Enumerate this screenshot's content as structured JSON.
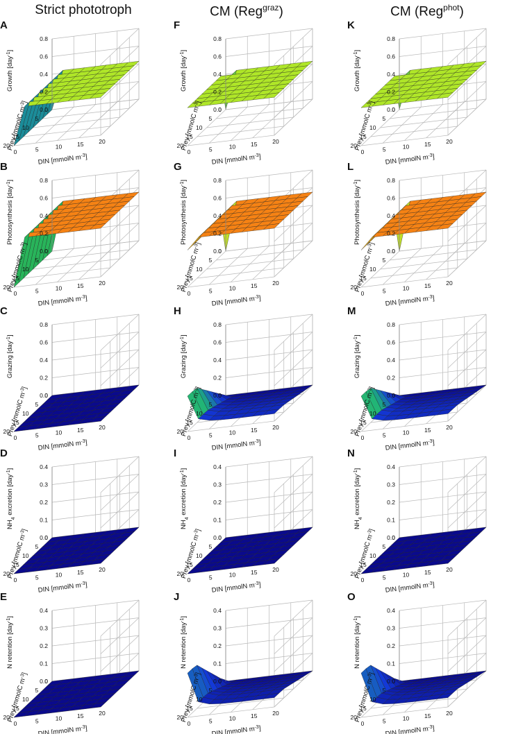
{
  "columns": [
    {
      "title": "Strict phototroph",
      "title_sup": ""
    },
    {
      "title": "CM (Reg",
      "title_sup": "graz",
      "title_end": ")"
    },
    {
      "title": "CM (Reg",
      "title_sup": "phot",
      "title_end": ")"
    }
  ],
  "axes": {
    "x_label": "DIN [mmolN m",
    "x_label_sup": "-3",
    "x_label_end": "]",
    "y_label": "Prey [mmolC m",
    "y_label_sup": "-3",
    "y_label_end": "]",
    "x_ticks": [
      "0",
      "5",
      "10",
      "15",
      "20"
    ],
    "y_ticks": [
      "20",
      "15",
      "10",
      "5",
      "0"
    ],
    "x_range": [
      0,
      20
    ],
    "y_range": [
      0,
      20
    ]
  },
  "rows": [
    {
      "z_label": "Growth [day",
      "z_sup": "-1",
      "z_end": "]",
      "z_ticks": [
        "0.0",
        "0.2",
        "0.4",
        "0.6",
        "0.8"
      ],
      "zlim": [
        0,
        0.8
      ]
    },
    {
      "z_label": "Photosynthesis [day",
      "z_sup": "-1",
      "z_end": "]",
      "z_ticks": [
        "0.0",
        "0.2",
        "0.4",
        "0.6",
        "0.8"
      ],
      "zlim": [
        0,
        0.8
      ]
    },
    {
      "z_label": "Grazing [day",
      "z_sup": "-1",
      "z_end": "]",
      "z_ticks": [
        "0.0",
        "0.2",
        "0.4",
        "0.6",
        "0.8"
      ],
      "zlim": [
        0,
        0.8
      ]
    },
    {
      "z_label": "NH",
      "z_sub": "4",
      "z_label2": " excretion [day",
      "z_sup": "-1",
      "z_end": "]",
      "z_ticks": [
        "0.0",
        "0.1",
        "0.2",
        "0.3",
        "0.4"
      ],
      "zlim": [
        0,
        0.4
      ]
    },
    {
      "z_label": "N retention [day",
      "z_sup": "-1",
      "z_end": "]",
      "z_ticks": [
        "0.0",
        "0.1",
        "0.2",
        "0.3",
        "0.4"
      ],
      "zlim": [
        0,
        0.4
      ]
    }
  ],
  "panel_letters": [
    [
      "A",
      "F",
      "K"
    ],
    [
      "B",
      "G",
      "L"
    ],
    [
      "C",
      "H",
      "M"
    ],
    [
      "D",
      "I",
      "N"
    ],
    [
      "E",
      "J",
      "O"
    ]
  ],
  "chart_data": {
    "type": "surface",
    "x_label": "DIN [mmolN m-3]",
    "y_label": "Prey [mmolC m-3]",
    "x": [
      0,
      2.5,
      5,
      7.5,
      10,
      12.5,
      15,
      17.5,
      20
    ],
    "y": [
      0,
      2.5,
      5,
      7.5,
      10,
      12.5,
      15,
      17.5,
      20
    ],
    "z_note": "z[iy][ix], iy = Prey index, ix = DIN index",
    "panels": [
      {
        "panel": "A",
        "zlabel": "Growth [day-1]",
        "zlim": [
          0,
          0.8
        ],
        "z_plateau": 0.43,
        "z_din0": 0.0,
        "z_corner": 0.0,
        "colormap": "growth"
      },
      {
        "panel": "F",
        "zlabel": "Growth [day-1]",
        "zlim": [
          0,
          0.8
        ],
        "z_plateau": 0.43,
        "z_din0": 0.43,
        "z_corner": 0.0,
        "colormap": "growth"
      },
      {
        "panel": "K",
        "zlabel": "Growth [day-1]",
        "zlim": [
          0,
          0.8
        ],
        "z_plateau": 0.43,
        "z_din0": 0.43,
        "z_corner": 0.0,
        "colormap": "growth"
      },
      {
        "panel": "B",
        "zlabel": "Photosynthesis [day-1]",
        "zlim": [
          0,
          0.8
        ],
        "z_plateau": 0.55,
        "z_din0": 0.0,
        "z_corner": 0.0,
        "colormap": "photo"
      },
      {
        "panel": "G",
        "zlabel": "Photosynthesis [day-1]",
        "zlim": [
          0,
          0.8
        ],
        "z_plateau": 0.55,
        "z_din0": 0.42,
        "z_corner": 0.0,
        "colormap": "photo"
      },
      {
        "panel": "L",
        "zlabel": "Photosynthesis [day-1]",
        "zlim": [
          0,
          0.8
        ],
        "z_plateau": 0.55,
        "z_din0": 0.42,
        "z_corner": 0.0,
        "colormap": "photo"
      },
      {
        "panel": "C",
        "zlabel": "Grazing [day-1]",
        "zlim": [
          0,
          0.8
        ],
        "z_plateau": 0.0,
        "z_din0": 0.0,
        "z_corner": 0.0,
        "colormap": "growth"
      },
      {
        "panel": "H",
        "zlabel": "Grazing [day-1]",
        "zlim": [
          0,
          0.8
        ],
        "z_plateau": 0.0,
        "z_din0": 0.4,
        "z_corner": 0.0,
        "prey_peak": 0.4,
        "colormap": "growth"
      },
      {
        "panel": "M",
        "zlabel": "Grazing [day-1]",
        "zlim": [
          0,
          0.8
        ],
        "z_plateau": 0.0,
        "z_din0": 0.4,
        "z_corner": 0.0,
        "prey_peak": 0.4,
        "colormap": "growth"
      },
      {
        "panel": "D",
        "zlabel": "NH4 excretion [day-1]",
        "zlim": [
          0,
          0.4
        ],
        "z_plateau": 0.0,
        "z_din0": 0.0,
        "z_corner": 0.0,
        "colormap": "growth"
      },
      {
        "panel": "I",
        "zlabel": "NH4 excretion [day-1]",
        "zlim": [
          0,
          0.4
        ],
        "z_plateau": 0.0,
        "z_din0": 0.0,
        "z_corner": 0.0,
        "colormap": "growth"
      },
      {
        "panel": "N",
        "zlabel": "NH4 excretion [day-1]",
        "zlim": [
          0,
          0.4
        ],
        "z_plateau": 0.0,
        "z_din0": 0.0,
        "z_corner": 0.0,
        "colormap": "growth"
      },
      {
        "panel": "E",
        "zlabel": "N retention [day-1]",
        "zlim": [
          0,
          0.4
        ],
        "z_plateau": 0.0,
        "z_din0": 0.0,
        "z_corner": 0.0,
        "colormap": "growth"
      },
      {
        "panel": "J",
        "zlabel": "N retention [day-1]",
        "zlim": [
          0,
          0.4
        ],
        "z_plateau": 0.0,
        "z_din0": 0.25,
        "z_corner": 0.0,
        "prey_peak": 0.25,
        "colormap": "growth"
      },
      {
        "panel": "O",
        "zlabel": "N retention [day-1]",
        "zlim": [
          0,
          0.4
        ],
        "z_plateau": 0.0,
        "z_din0": 0.25,
        "z_corner": 0.0,
        "prey_peak": 0.25,
        "colormap": "growth"
      }
    ]
  }
}
